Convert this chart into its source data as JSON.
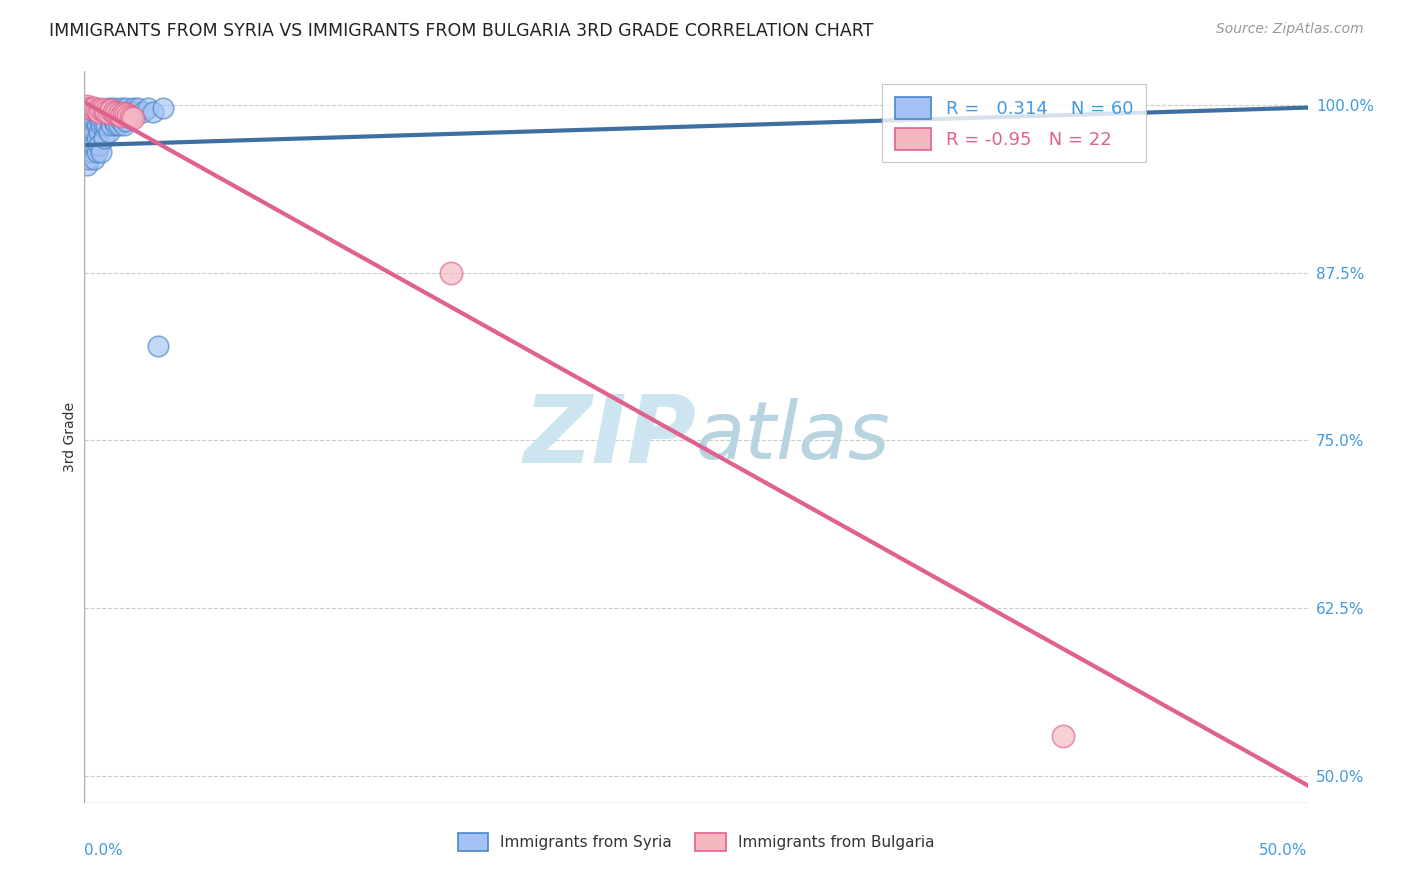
{
  "title": "IMMIGRANTS FROM SYRIA VS IMMIGRANTS FROM BULGARIA 3RD GRADE CORRELATION CHART",
  "source_text": "Source: ZipAtlas.com",
  "ylabel": "3rd Grade",
  "right_yticks": [
    "100.0%",
    "87.5%",
    "75.0%",
    "62.5%",
    "50.0%"
  ],
  "right_ytick_vals": [
    1.0,
    0.875,
    0.75,
    0.625,
    0.5
  ],
  "xmin": 0.0,
  "xmax": 0.5,
  "ymin": 0.48,
  "ymax": 1.025,
  "syria_color": "#a4c2f4",
  "syria_edge": "#4a86c8",
  "bulgaria_color": "#f4b8c1",
  "bulgaria_edge": "#e06090",
  "syria_line_color": "#3d6fa0",
  "bulgaria_line_color": "#e06090",
  "legend_syria_label": "Immigrants from Syria",
  "legend_bulgaria_label": "Immigrants from Bulgaria",
  "R_syria": 0.314,
  "N_syria": 60,
  "R_bulgaria": -0.95,
  "N_bulgaria": 22,
  "syria_x": [
    0.001,
    0.001,
    0.001,
    0.001,
    0.001,
    0.002,
    0.002,
    0.002,
    0.002,
    0.002,
    0.003,
    0.003,
    0.003,
    0.003,
    0.004,
    0.004,
    0.004,
    0.004,
    0.005,
    0.005,
    0.005,
    0.005,
    0.006,
    0.006,
    0.006,
    0.007,
    0.007,
    0.007,
    0.008,
    0.008,
    0.008,
    0.009,
    0.009,
    0.01,
    0.01,
    0.01,
    0.011,
    0.011,
    0.012,
    0.012,
    0.013,
    0.013,
    0.014,
    0.014,
    0.015,
    0.015,
    0.016,
    0.016,
    0.017,
    0.017,
    0.018,
    0.019,
    0.02,
    0.021,
    0.022,
    0.024,
    0.026,
    0.028,
    0.03,
    0.032
  ],
  "syria_y": [
    0.995,
    0.985,
    0.975,
    0.965,
    0.955,
    0.998,
    0.99,
    0.98,
    0.97,
    0.96,
    0.995,
    0.985,
    0.975,
    0.965,
    0.99,
    0.98,
    0.97,
    0.96,
    0.995,
    0.985,
    0.975,
    0.965,
    0.99,
    0.98,
    0.97,
    0.995,
    0.985,
    0.965,
    0.995,
    0.985,
    0.975,
    0.995,
    0.985,
    0.998,
    0.99,
    0.98,
    0.995,
    0.985,
    0.998,
    0.988,
    0.995,
    0.985,
    0.995,
    0.985,
    0.998,
    0.988,
    0.995,
    0.985,
    0.998,
    0.988,
    0.995,
    0.995,
    0.998,
    0.995,
    0.998,
    0.995,
    0.998,
    0.995,
    0.82,
    0.998
  ],
  "bulgaria_x": [
    0.001,
    0.002,
    0.003,
    0.004,
    0.005,
    0.006,
    0.007,
    0.008,
    0.009,
    0.01,
    0.011,
    0.012,
    0.013,
    0.014,
    0.015,
    0.016,
    0.017,
    0.018,
    0.019,
    0.02,
    0.15,
    0.4
  ],
  "bulgaria_y": [
    0.999,
    0.998,
    0.997,
    0.998,
    0.996,
    0.995,
    0.997,
    0.996,
    0.995,
    0.994,
    0.996,
    0.995,
    0.994,
    0.993,
    0.992,
    0.994,
    0.993,
    0.992,
    0.991,
    0.99,
    0.875,
    0.53
  ],
  "syria_line_x0": 0.0,
  "syria_line_x1": 0.5,
  "syria_line_y0": 0.97,
  "syria_line_y1": 0.998,
  "bulgaria_line_x0": 0.0,
  "bulgaria_line_x1": 0.5,
  "bulgaria_line_y0": 1.002,
  "bulgaria_line_y1": 0.493,
  "background_color": "#ffffff",
  "grid_color": "#cccccc",
  "watermark_color": "#cce5f0"
}
